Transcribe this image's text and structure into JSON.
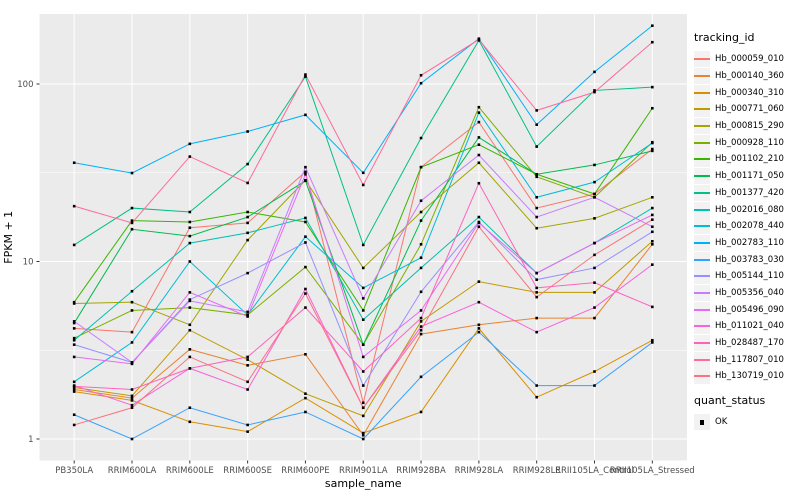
{
  "figure": {
    "background": "#FFFFFF",
    "panel_background": "#EBEBEB",
    "grid_color": "#FFFFFF",
    "tick_mark_color": "#333333",
    "axis_text_color": "#4D4D4D",
    "axis_title_color": "#000000"
  },
  "axes": {
    "x_title": "sample_name",
    "y_title": "FPKM + 1",
    "y_tick_labels": [
      "1",
      "10",
      "100"
    ]
  },
  "legend": {
    "tracking_title": "tracking_id",
    "quant_title": "quant_status",
    "quant_ok_label": "OK",
    "quant_symbol": "black-square"
  },
  "chart_data": {
    "type": "line",
    "title": "",
    "xlabel": "sample_name",
    "ylabel": "FPKM + 1",
    "y_scale": "log10",
    "ylim": [
      0.8,
      250
    ],
    "y_major_ticks": [
      1,
      10,
      100
    ],
    "y_minor_ticks": [
      3.162,
      31.62
    ],
    "grid": true,
    "legend_position": "right",
    "point_marker": "black-square",
    "categories": [
      "PB350LA",
      "RRIM600LA",
      "RRIM600LE",
      "RRIM600SE",
      "RRIM600PE",
      "RRIM901LA",
      "RRIM928BA",
      "RRIM928LA",
      "RRIM928LE",
      "RRII105LA_Control",
      "RRII105LA_Stressed"
    ],
    "series": [
      {
        "name": "Hb_000059_010",
        "color": "#F8766D",
        "values": [
          4.2,
          4.0,
          15.5,
          16.5,
          32,
          1.6,
          34,
          61,
          20,
          24,
          43
        ]
      },
      {
        "name": "Hb_000140_360",
        "color": "#EA8331",
        "values": [
          1.9,
          1.7,
          3.2,
          2.6,
          3.0,
          1.05,
          3.9,
          4.4,
          4.8,
          4.8,
          12.5
        ]
      },
      {
        "name": "Hb_000340_310",
        "color": "#D89000",
        "values": [
          1.85,
          1.65,
          1.25,
          1.1,
          1.7,
          1.08,
          1.42,
          4.2,
          1.72,
          2.4,
          3.6
        ]
      },
      {
        "name": "Hb_000771_060",
        "color": "#C09B00",
        "values": [
          1.95,
          1.75,
          4.1,
          2.8,
          1.8,
          1.35,
          4.6,
          7.7,
          6.7,
          6.7,
          13
        ]
      },
      {
        "name": "Hb_000815_290",
        "color": "#A3A500",
        "values": [
          5.8,
          5.9,
          4.4,
          13.2,
          28.7,
          9.2,
          19,
          36,
          15.4,
          17.5,
          23
        ]
      },
      {
        "name": "Hb_000928_110",
        "color": "#7CAE00",
        "values": [
          3.7,
          5.3,
          5.5,
          5.0,
          9.3,
          3.4,
          12.5,
          74,
          30,
          23,
          47
        ]
      },
      {
        "name": "Hb_001102_210",
        "color": "#39B600",
        "values": [
          5.9,
          17,
          16.7,
          19,
          16.7,
          5.3,
          34,
          45.5,
          31,
          24,
          73
        ]
      },
      {
        "name": "Hb_001171_050",
        "color": "#00BB4E",
        "values": [
          4.5,
          15.2,
          13.9,
          17.8,
          28.5,
          3.4,
          17,
          50,
          31,
          35,
          42
        ]
      },
      {
        "name": "Hb_001377_420",
        "color": "#00C087",
        "values": [
          12.4,
          20,
          19,
          35.4,
          110,
          12.4,
          49.6,
          176,
          44.4,
          92,
          96
        ]
      },
      {
        "name": "Hb_002016_080",
        "color": "#00C0B2",
        "values": [
          3.6,
          6.8,
          12.7,
          14.5,
          17.6,
          4.7,
          9.2,
          17.8,
          8.6,
          12.7,
          20
        ]
      },
      {
        "name": "Hb_002078_440",
        "color": "#00BCD8",
        "values": [
          2.1,
          3.5,
          10,
          5.0,
          13.8,
          7.1,
          10.5,
          69,
          23,
          28,
          46.5
        ]
      },
      {
        "name": "Hb_002783_110",
        "color": "#00B0F6",
        "values": [
          36,
          31.5,
          46,
          54,
          67,
          31.6,
          101,
          180,
          59,
          117,
          213
        ]
      },
      {
        "name": "Hb_003783_030",
        "color": "#35A2FF",
        "values": [
          1.37,
          1.0,
          1.5,
          1.2,
          1.42,
          1.0,
          2.24,
          4.0,
          2.0,
          2.0,
          3.5
        ]
      },
      {
        "name": "Hb_005144_110",
        "color": "#9590FF",
        "values": [
          3.4,
          2.7,
          6.1,
          8.6,
          12.8,
          2.0,
          6.75,
          16.7,
          7.9,
          9.2,
          14.7
        ]
      },
      {
        "name": "Hb_005356_040",
        "color": "#C77CFF",
        "values": [
          4.6,
          2.7,
          6.0,
          5.2,
          34,
          6.2,
          22,
          39.8,
          17.8,
          23,
          15.7
        ]
      },
      {
        "name": "Hb_005496_090",
        "color": "#E76BF3",
        "values": [
          2.9,
          2.65,
          6.7,
          4.9,
          31,
          2.9,
          5.3,
          16.5,
          8.6,
          12.7,
          18.3
        ]
      },
      {
        "name": "Hb_011021_040",
        "color": "#FA62DB",
        "values": [
          2.0,
          1.55,
          2.5,
          1.9,
          7.0,
          1.5,
          4.3,
          5.9,
          4.0,
          5.5,
          9.6
        ]
      },
      {
        "name": "Hb_028487_170",
        "color": "#FF62BC",
        "values": [
          1.98,
          1.9,
          2.5,
          2.9,
          5.5,
          2.4,
          4.8,
          27.6,
          7.1,
          7.6,
          5.55
        ]
      },
      {
        "name": "Hb_117807_010",
        "color": "#FF6A9A",
        "values": [
          20.5,
          16.5,
          39,
          27.7,
          113,
          27,
          112,
          178,
          71,
          90,
          172
        ]
      },
      {
        "name": "Hb_130719_010",
        "color": "#FC717F",
        "values": [
          1.2,
          1.5,
          2.9,
          2.1,
          6.6,
          1.5,
          4.1,
          15.7,
          6.3,
          10.9,
          17.2
        ]
      }
    ]
  }
}
